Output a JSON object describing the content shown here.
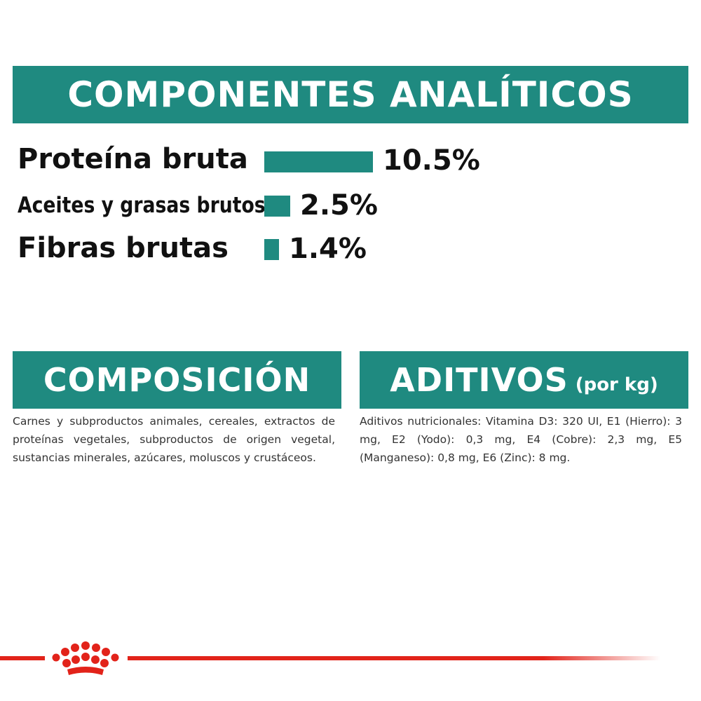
{
  "analytic": {
    "title": "COMPONENTES ANALÍTICOS",
    "items": [
      {
        "label": "Proteína bruta",
        "value_text": "10.5%",
        "value": 10.5
      },
      {
        "label": "Aceites y grasas brutos",
        "value_text": "2.5%",
        "value": 2.5
      },
      {
        "label": "Fibras brutas",
        "value_text": "1.4%",
        "value": 1.4
      }
    ]
  },
  "composition": {
    "title": "COMPOSICIÓN",
    "text": "Carnes y subproductos animales, cereales, extractos de proteínas vegetales, subproductos de origen vegetal, sustancias minerales, azúcares, moluscos y crustáceos."
  },
  "additives": {
    "title": "ADITIVOS",
    "unit": "(por kg)",
    "text": "Aditivos nutricionales: Vitamina D3: 320 UI, E1 (Hierro): 3 mg, E2 (Yodo): 0,3 mg, E4 (Cobre): 2,3 mg, E5 (Manganeso): 0,8 mg, E6 (Zinc): 8 mg."
  },
  "colors": {
    "accent": "#1f8a80",
    "brand_red": "#e2231a",
    "text": "#111111"
  },
  "footer": {
    "logo": "crown-logo"
  }
}
